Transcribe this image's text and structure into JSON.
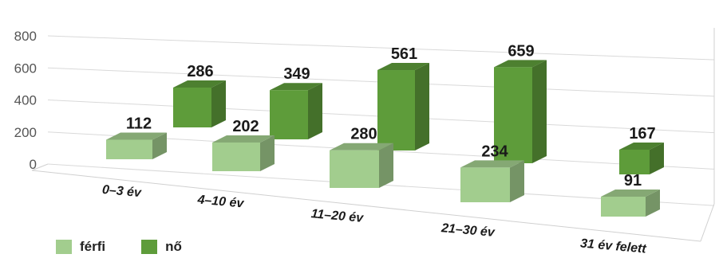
{
  "chart_data": {
    "type": "bar",
    "categories": [
      "0–3 év",
      "4–10 év",
      "11–20 év",
      "21–30 év",
      "31 év felett"
    ],
    "series": [
      {
        "name": "férfi",
        "values": [
          112,
          202,
          280,
          234,
          91
        ],
        "color": "#a2cd8e"
      },
      {
        "name": "nő",
        "values": [
          286,
          349,
          561,
          659,
          167
        ],
        "color": "#5e9c3a"
      }
    ],
    "y_ticks": [
      "0",
      "200",
      "400",
      "600",
      "800"
    ],
    "ylim": [
      0,
      800
    ],
    "grid": true,
    "legend_position": "bottom-left",
    "style": "3d-perspective"
  }
}
